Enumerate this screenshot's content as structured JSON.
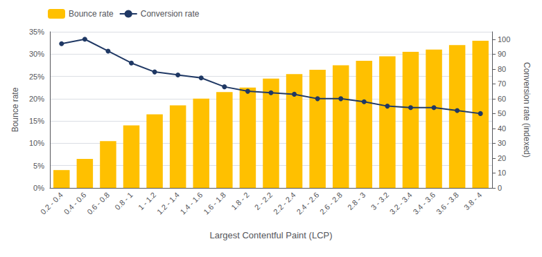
{
  "chart_data": {
    "type": "bar",
    "xlabel": "Largest Contentful Paint (LCP)",
    "ylabel": "Bounce rate",
    "y2label": "Conversion rate (indexed)",
    "categories": [
      "0.2 - 0.4",
      "0.4 - 0.6",
      "0.6 - 0.8",
      "0.8 - 1",
      "1 - 1.2",
      "1.2 - 1.4",
      "1.4 - 1.6",
      "1.6 - 1.8",
      "1.8 - 2",
      "2 - 2.2",
      "2.2 - 2.4",
      "2.4 - 2.6",
      "2.6 - 2.8",
      "2.8 - 3",
      "3 - 3.2",
      "3.2 - 3.4",
      "3.4 - 3.6",
      "3.6 - 3.8",
      "3.8 - 4"
    ],
    "series": [
      {
        "name": "Bounce rate",
        "type": "bar",
        "color": "#FFC000",
        "values": [
          0.04,
          0.065,
          0.105,
          0.14,
          0.165,
          0.185,
          0.2,
          0.215,
          0.225,
          0.245,
          0.255,
          0.265,
          0.275,
          0.285,
          0.295,
          0.305,
          0.31,
          0.32,
          0.33
        ]
      },
      {
        "name": "Conversion rate",
        "type": "line",
        "axis": "y2",
        "color": "#1F3864",
        "marker": "circle",
        "values": [
          97,
          100,
          92,
          84,
          78,
          76,
          74,
          68,
          65,
          64,
          63,
          60,
          60,
          58,
          55,
          54,
          54,
          52,
          50
        ]
      }
    ],
    "ylim": [
      0,
      0.35
    ],
    "yticks": [
      {
        "value": 0,
        "label": "0%"
      },
      {
        "value": 0.05,
        "label": "5%"
      },
      {
        "value": 0.1,
        "label": "10%"
      },
      {
        "value": 0.15,
        "label": "15%"
      },
      {
        "value": 0.2,
        "label": "20%"
      },
      {
        "value": 0.25,
        "label": "25%"
      },
      {
        "value": 0.3,
        "label": "30%"
      },
      {
        "value": 0.35,
        "label": "35%"
      }
    ],
    "y2lim": [
      0,
      105
    ],
    "y2ticks": [
      0,
      10,
      20,
      30,
      40,
      50,
      60,
      70,
      80,
      90,
      100
    ],
    "grid": true,
    "legend": "top left"
  }
}
